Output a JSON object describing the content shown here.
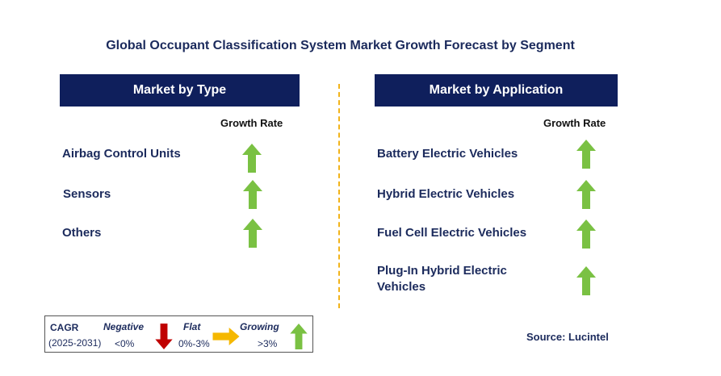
{
  "title": "Global Occupant Classification System Market Growth Forecast by Segment",
  "left_panel": {
    "header": "Market by Type",
    "growth_label": "Growth Rate",
    "rows": [
      {
        "label": "Airbag Control Units",
        "trend": "growing"
      },
      {
        "label": "Sensors",
        "trend": "growing"
      },
      {
        "label": "Others",
        "trend": "growing"
      }
    ]
  },
  "right_panel": {
    "header": "Market by Application",
    "growth_label": "Growth Rate",
    "rows": [
      {
        "label": "Battery Electric Vehicles",
        "trend": "growing"
      },
      {
        "label": "Hybrid Electric Vehicles",
        "trend": "growing"
      },
      {
        "label": "Fuel Cell Electric Vehicles",
        "trend": "growing"
      },
      {
        "label_line1": "Plug-In Hybrid Electric",
        "label_line2": "Vehicles",
        "trend": "growing"
      }
    ]
  },
  "legend": {
    "cagr_label": "CAGR",
    "period": "(2025-2031)",
    "negative_label": "Negative",
    "negative_range": "<0%",
    "flat_label": "Flat",
    "flat_range": "0%-3%",
    "growing_label": "Growing",
    "growing_range": ">3%"
  },
  "source": "Source: Lucintel",
  "colors": {
    "header_bg": "#0f1f5c",
    "text": "#1b2a5c",
    "growing": "#7ac143",
    "flat": "#f5b800",
    "negative": "#c00000",
    "divider": "#f2b31a"
  },
  "icons": {
    "growing": "arrow-up-icon",
    "flat": "arrow-right-icon",
    "negative": "arrow-down-icon"
  }
}
